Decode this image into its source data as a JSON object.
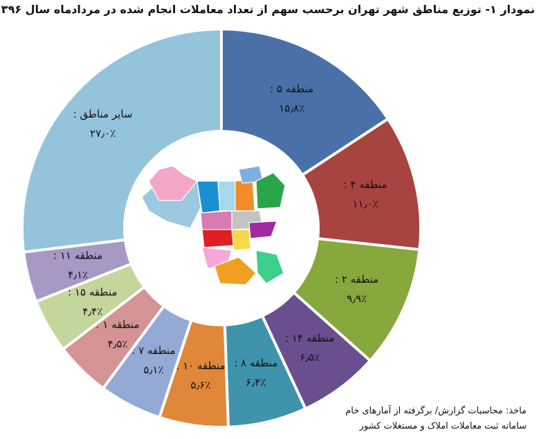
{
  "chart_data": {
    "type": "pie",
    "donut": true,
    "title": "نمودار ۱- توزیع مناطق شهر تهران برحسب سهم از تعداد معاملات انجام شده در مردادماه سال ۱۳۹۶",
    "start": "top",
    "direction": "clockwise",
    "slices": [
      {
        "label": "منطقه ۵ :",
        "value": 15.8,
        "value_label": "۱۵٫۸٪",
        "color": "#4a70a8"
      },
      {
        "label": "منطقه ۴ :",
        "value": 11.0,
        "value_label": "۱۱٫۰٪",
        "color": "#a84440"
      },
      {
        "label": "منطقه ۲ :",
        "value": 9.9,
        "value_label": "۹٫۹٪",
        "color": "#87a83c"
      },
      {
        "label": "منطقه ۱۴ :",
        "value": 6.5,
        "value_label": "۶٫۵٪",
        "color": "#6a4f8e"
      },
      {
        "label": "منطقه ۸ :",
        "value": 6.4,
        "value_label": "۶٫۴٪",
        "color": "#3f94ac"
      },
      {
        "label": "منطقه ۱۰ :",
        "value": 5.6,
        "value_label": "۵٫۶٪",
        "color": "#e0873a"
      },
      {
        "label": "منطقه ۷ :",
        "value": 5.1,
        "value_label": "۵٫۱٪",
        "color": "#94aad4"
      },
      {
        "label": "منطقه ۱ :",
        "value": 4.5,
        "value_label": "۴٫۵٪",
        "color": "#d49494"
      },
      {
        "label": "منطقه ۱۵ :",
        "value": 4.4,
        "value_label": "۴٫۴٪",
        "color": "#c4d69c"
      },
      {
        "label": "منطقه ۱۱ :",
        "value": 4.1,
        "value_label": "۴٫۱٪",
        "color": "#a898c4"
      },
      {
        "label": "سایر مناطق :",
        "value": 27.0,
        "value_label": "۲۷٫۰٪",
        "color": "#94c4dc"
      }
    ]
  },
  "source": {
    "line1": "ماخذ: محاسبات گزارش/ برگرفته از آمارهای خام",
    "line2": "سامانه ثبت معاملات املاک و مستغلات کشور"
  },
  "map_icon": "tehran-districts-map"
}
